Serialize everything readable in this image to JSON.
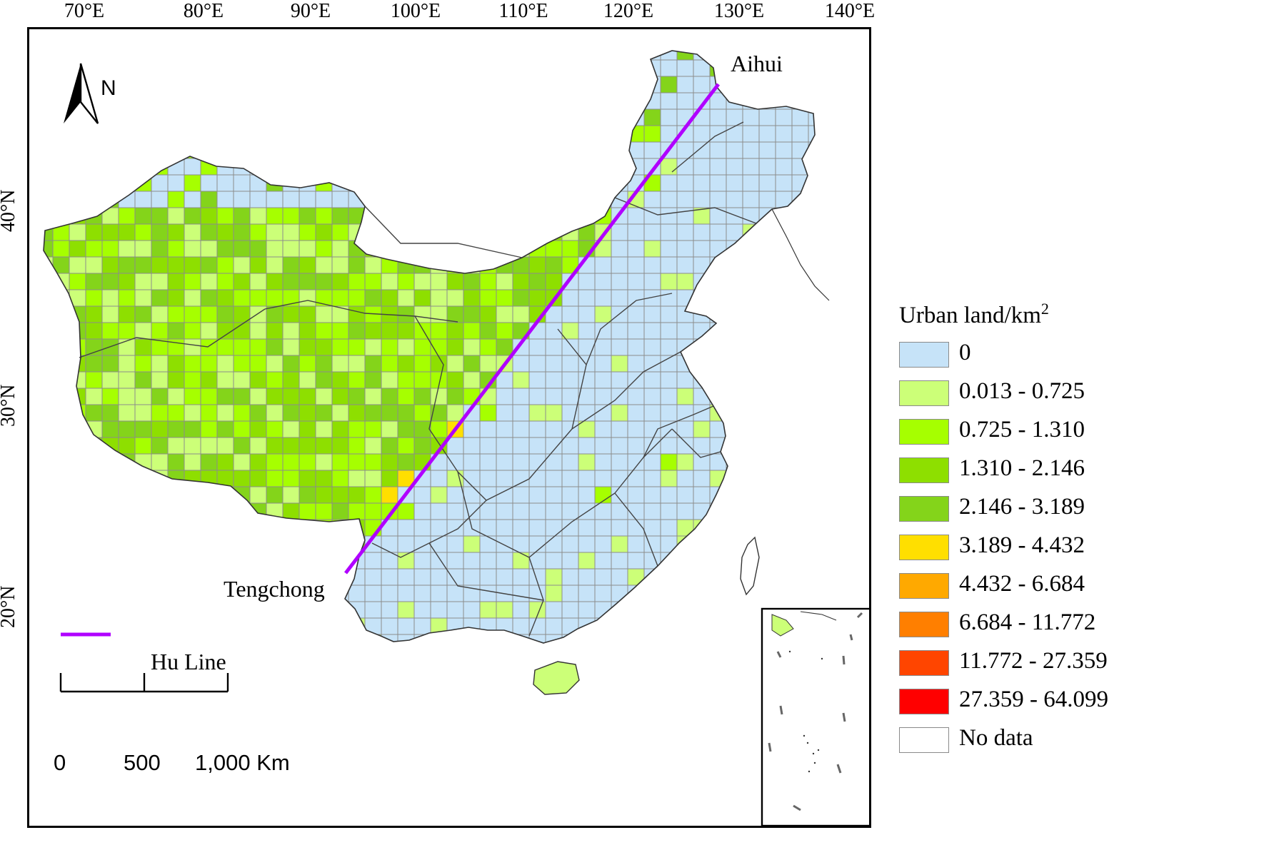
{
  "axes": {
    "longitudes": [
      "70°E",
      "80°E",
      "90°E",
      "100°E",
      "110°E",
      "120°E",
      "130°E",
      "140°E"
    ],
    "latitudes": [
      "40°N",
      "30°N",
      "20°N"
    ]
  },
  "north_arrow": {
    "letter": "N"
  },
  "places": {
    "northeast": "Aihui",
    "southwest": "Tengchong"
  },
  "hu_line": {
    "legend_label": "Hu Line",
    "color": "#b000ff"
  },
  "scale_bar": {
    "ticks": [
      "0",
      "500",
      "1,000 Km"
    ]
  },
  "legend": {
    "title": "Urban land/km",
    "title_superscript": "2",
    "classes": [
      {
        "label": "0",
        "color": "#c6e3f8"
      },
      {
        "label": "0.013 - 0.725",
        "color": "#ccff78"
      },
      {
        "label": "0.725 - 1.310",
        "color": "#a6ff00"
      },
      {
        "label": "1.310 - 2.146",
        "color": "#8edf00"
      },
      {
        "label": "2.146 - 3.189",
        "color": "#84d41a"
      },
      {
        "label": "3.189 - 4.432",
        "color": "#ffdf00"
      },
      {
        "label": "4.432 - 6.684",
        "color": "#ffa900"
      },
      {
        "label": "6.684 - 11.772",
        "color": "#ff7f00"
      },
      {
        "label": "11.772 - 27.359",
        "color": "#ff4500"
      },
      {
        "label": "27.359 - 64.099",
        "color": "#ff0000"
      },
      {
        "label": "No data",
        "color": "#ffffff"
      }
    ]
  }
}
